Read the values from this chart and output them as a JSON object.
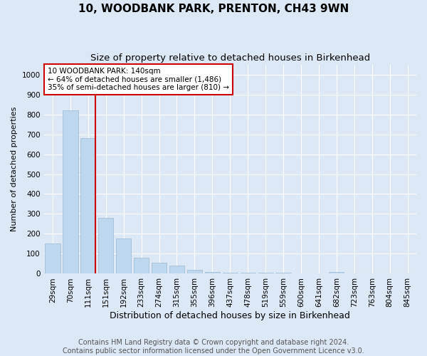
{
  "title": "10, WOODBANK PARK, PRENTON, CH43 9WN",
  "subtitle": "Size of property relative to detached houses in Birkenhead",
  "xlabel": "Distribution of detached houses by size in Birkenhead",
  "ylabel": "Number of detached properties",
  "categories": [
    "29sqm",
    "70sqm",
    "111sqm",
    "151sqm",
    "192sqm",
    "233sqm",
    "274sqm",
    "315sqm",
    "355sqm",
    "396sqm",
    "437sqm",
    "478sqm",
    "519sqm",
    "559sqm",
    "600sqm",
    "641sqm",
    "682sqm",
    "723sqm",
    "763sqm",
    "804sqm",
    "845sqm"
  ],
  "values": [
    150,
    820,
    680,
    280,
    175,
    80,
    55,
    40,
    20,
    10,
    5,
    5,
    5,
    5,
    0,
    0,
    8,
    0,
    0,
    0,
    0
  ],
  "bar_color": "#bdd7ee",
  "bar_edge_color": "#9ab8d0",
  "highlight_bar_index": 2,
  "highlight_color": "#cc0000",
  "annotation_text": "10 WOODBANK PARK: 140sqm\n← 64% of detached houses are smaller (1,486)\n35% of semi-detached houses are larger (810) →",
  "annotation_box_color": "#ffffff",
  "annotation_box_edge": "#cc0000",
  "ylim": [
    0,
    1050
  ],
  "yticks": [
    0,
    100,
    200,
    300,
    400,
    500,
    600,
    700,
    800,
    900,
    1000
  ],
  "fig_background": "#dce8f5",
  "plot_background": "#dce8f5",
  "footer_line1": "Contains HM Land Registry data © Crown copyright and database right 2024.",
  "footer_line2": "Contains public sector information licensed under the Open Government Licence v3.0.",
  "title_fontsize": 11,
  "subtitle_fontsize": 9.5,
  "xlabel_fontsize": 9,
  "ylabel_fontsize": 8,
  "tick_fontsize": 7.5,
  "footer_fontsize": 7
}
